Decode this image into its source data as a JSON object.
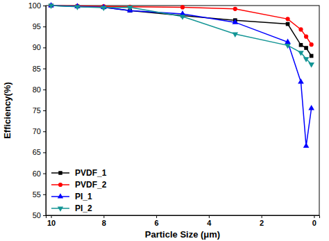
{
  "chart_data": {
    "type": "line",
    "x_label": "Particle Size (μm)",
    "y_label": "Efficiency(%)",
    "x": [
      10,
      9,
      8,
      7,
      5,
      3,
      1,
      0.5,
      0.3,
      0.1
    ],
    "xlim": [
      10.2,
      -0.2
    ],
    "xticks": [
      10,
      8,
      6,
      4,
      2,
      0
    ],
    "ylim": [
      50,
      100
    ],
    "yticks": [
      50,
      55,
      60,
      65,
      70,
      75,
      80,
      85,
      90,
      95,
      100
    ],
    "grid": false,
    "legend": "lower left",
    "series": [
      {
        "name": "PVDF_1",
        "color": "#000000",
        "marker": "square",
        "values": [
          100,
          99.8,
          99.6,
          98.8,
          97.6,
          96.5,
          95.6,
          90.6,
          89.9,
          88.0
        ]
      },
      {
        "name": "PVDF_2",
        "color": "#ff0000",
        "marker": "circle",
        "values": [
          100,
          99.9,
          99.8,
          99.7,
          99.6,
          99.2,
          96.8,
          94.3,
          92.6,
          90.7
        ]
      },
      {
        "name": "PI_1",
        "color": "#0000ff",
        "marker": "triangle-up",
        "values": [
          100,
          99.8,
          99.6,
          98.8,
          98.0,
          96.0,
          91.3,
          81.8,
          66.5,
          75.5
        ]
      },
      {
        "name": "PI_2",
        "color": "#139595",
        "marker": "triangle-down",
        "values": [
          100,
          99.7,
          99.5,
          99.6,
          97.4,
          93.2,
          90.5,
          88.8,
          87.3,
          86.0
        ]
      }
    ]
  }
}
